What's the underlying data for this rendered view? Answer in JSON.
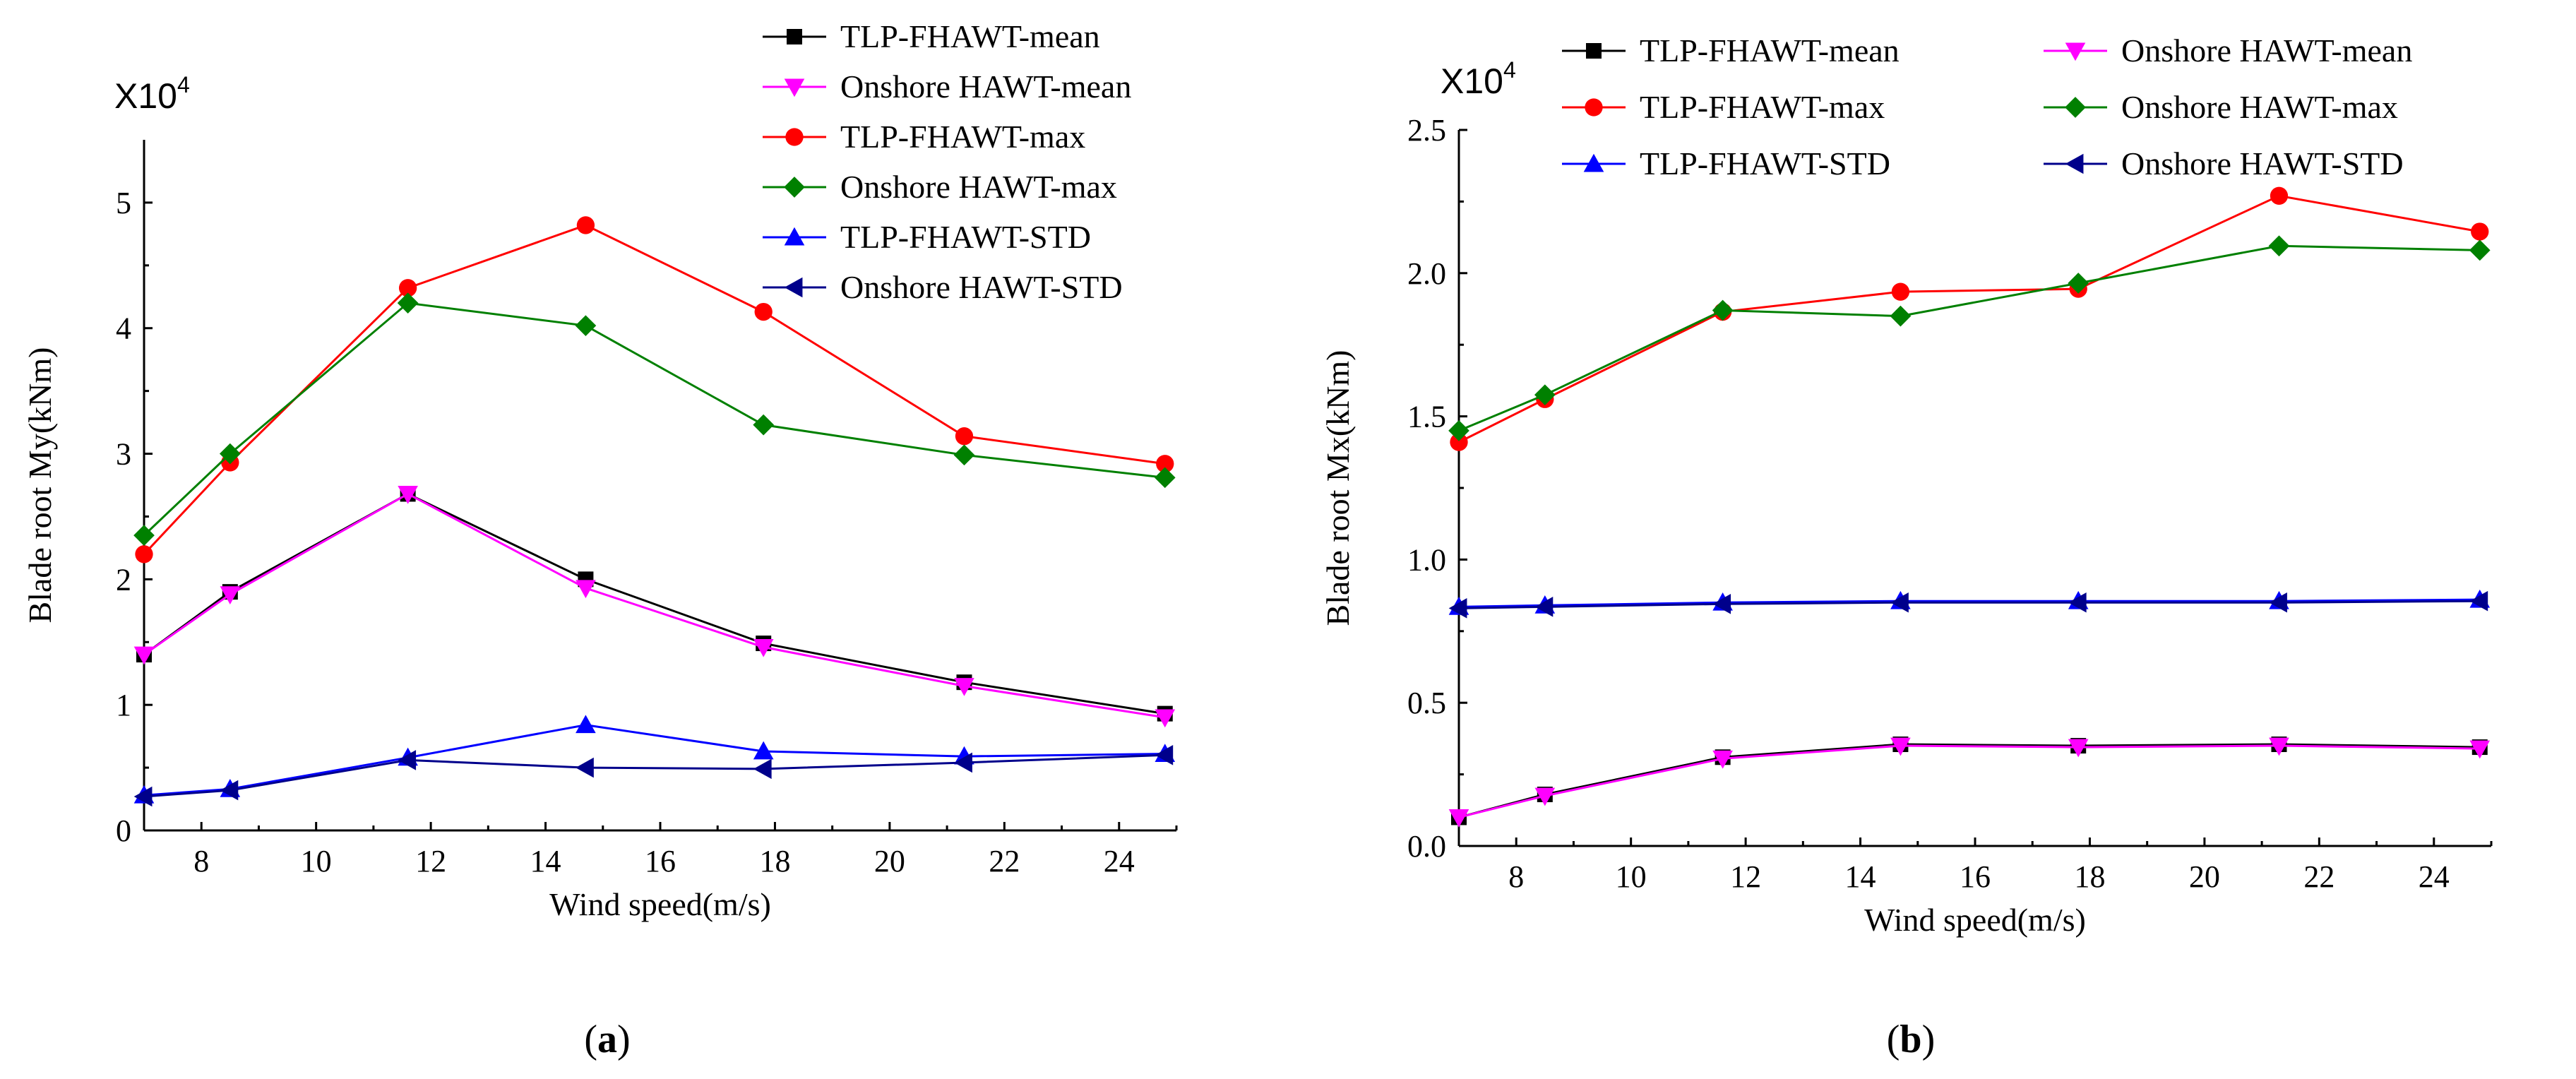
{
  "panels": [
    {
      "id": "a",
      "label": "a",
      "chart_data": {
        "type": "line",
        "xlabel": "Wind speed(m/s)",
        "ylabel": "Blade root My(kNm)",
        "multiplier": {
          "base": "X10",
          "exp": "4"
        },
        "xlim": [
          7,
          25
        ],
        "ylim": [
          0,
          5.5
        ],
        "xticks": [
          8,
          10,
          12,
          14,
          16,
          18,
          20,
          22,
          24
        ],
        "yticks": [
          0,
          1,
          2,
          3,
          4,
          5
        ],
        "ytick_labels": [
          "0",
          "1",
          "2",
          "3",
          "4",
          "5"
        ],
        "x": [
          7.0,
          8.5,
          11.6,
          14.7,
          17.8,
          21.3,
          24.8
        ],
        "legend_position": "top-right",
        "series": [
          {
            "name": "TLP-FHAWT-mean",
            "color": "#000000",
            "marker": "square",
            "values": [
              1.4,
              1.9,
              2.68,
              2.0,
              1.49,
              1.18,
              0.93
            ]
          },
          {
            "name": "Onshore HAWT-mean",
            "color": "#ff00ff",
            "marker": "triangle-down",
            "values": [
              1.4,
              1.88,
              2.68,
              1.93,
              1.46,
              1.15,
              0.9
            ]
          },
          {
            "name": "TLP-FHAWT-max",
            "color": "#ff0000",
            "marker": "circle",
            "values": [
              2.2,
              2.93,
              4.32,
              4.82,
              4.13,
              3.14,
              2.92
            ]
          },
          {
            "name": "Onshore HAWT-max",
            "color": "#008000",
            "marker": "diamond",
            "values": [
              2.35,
              3.0,
              4.2,
              4.02,
              3.23,
              2.99,
              2.81
            ]
          },
          {
            "name": "TLP-FHAWT-STD",
            "color": "#0000ff",
            "marker": "triangle-up",
            "values": [
              0.28,
              0.33,
              0.58,
              0.84,
              0.63,
              0.59,
              0.61
            ]
          },
          {
            "name": "Onshore HAWT-STD",
            "color": "#00008b",
            "marker": "triangle-left",
            "values": [
              0.27,
              0.32,
              0.56,
              0.5,
              0.49,
              0.54,
              0.6
            ]
          }
        ]
      }
    },
    {
      "id": "b",
      "label": "b",
      "chart_data": {
        "type": "line",
        "xlabel": "Wind speed(m/s)",
        "ylabel": "Blade root Mx(kNm)",
        "multiplier": {
          "base": "X10",
          "exp": "4"
        },
        "xlim": [
          7,
          25
        ],
        "ylim": [
          0,
          2.5
        ],
        "xticks": [
          8,
          10,
          12,
          14,
          16,
          18,
          20,
          22,
          24
        ],
        "yticks": [
          0,
          0.5,
          1.0,
          1.5,
          2.0,
          2.5
        ],
        "ytick_labels": [
          "0.0",
          "0.5",
          "1.0",
          "1.5",
          "2.0",
          "2.5"
        ],
        "x": [
          7.0,
          8.5,
          11.6,
          14.7,
          17.8,
          21.3,
          24.8
        ],
        "legend_position": "top, two columns",
        "series": [
          {
            "name": "TLP-FHAWT-mean",
            "color": "#000000",
            "marker": "square",
            "values": [
              0.1,
              0.18,
              0.31,
              0.355,
              0.35,
              0.355,
              0.345
            ]
          },
          {
            "name": "Onshore HAWT-mean",
            "color": "#ff00ff",
            "marker": "triangle-down",
            "values": [
              0.1,
              0.175,
              0.305,
              0.35,
              0.345,
              0.35,
              0.34
            ]
          },
          {
            "name": "TLP-FHAWT-max",
            "color": "#ff0000",
            "marker": "circle",
            "values": [
              1.41,
              1.56,
              1.865,
              1.935,
              1.945,
              2.27,
              2.145
            ]
          },
          {
            "name": "Onshore HAWT-max",
            "color": "#008000",
            "marker": "diamond",
            "values": [
              1.45,
              1.575,
              1.87,
              1.85,
              1.965,
              2.095,
              2.08
            ]
          },
          {
            "name": "TLP-FHAWT-STD",
            "color": "#0000ff",
            "marker": "triangle-up",
            "values": [
              0.835,
              0.84,
              0.85,
              0.855,
              0.855,
              0.855,
              0.86
            ]
          },
          {
            "name": "Onshore HAWT-STD",
            "color": "#00008b",
            "marker": "triangle-left",
            "values": [
              0.83,
              0.835,
              0.845,
              0.85,
              0.85,
              0.85,
              0.855
            ]
          }
        ]
      }
    }
  ]
}
